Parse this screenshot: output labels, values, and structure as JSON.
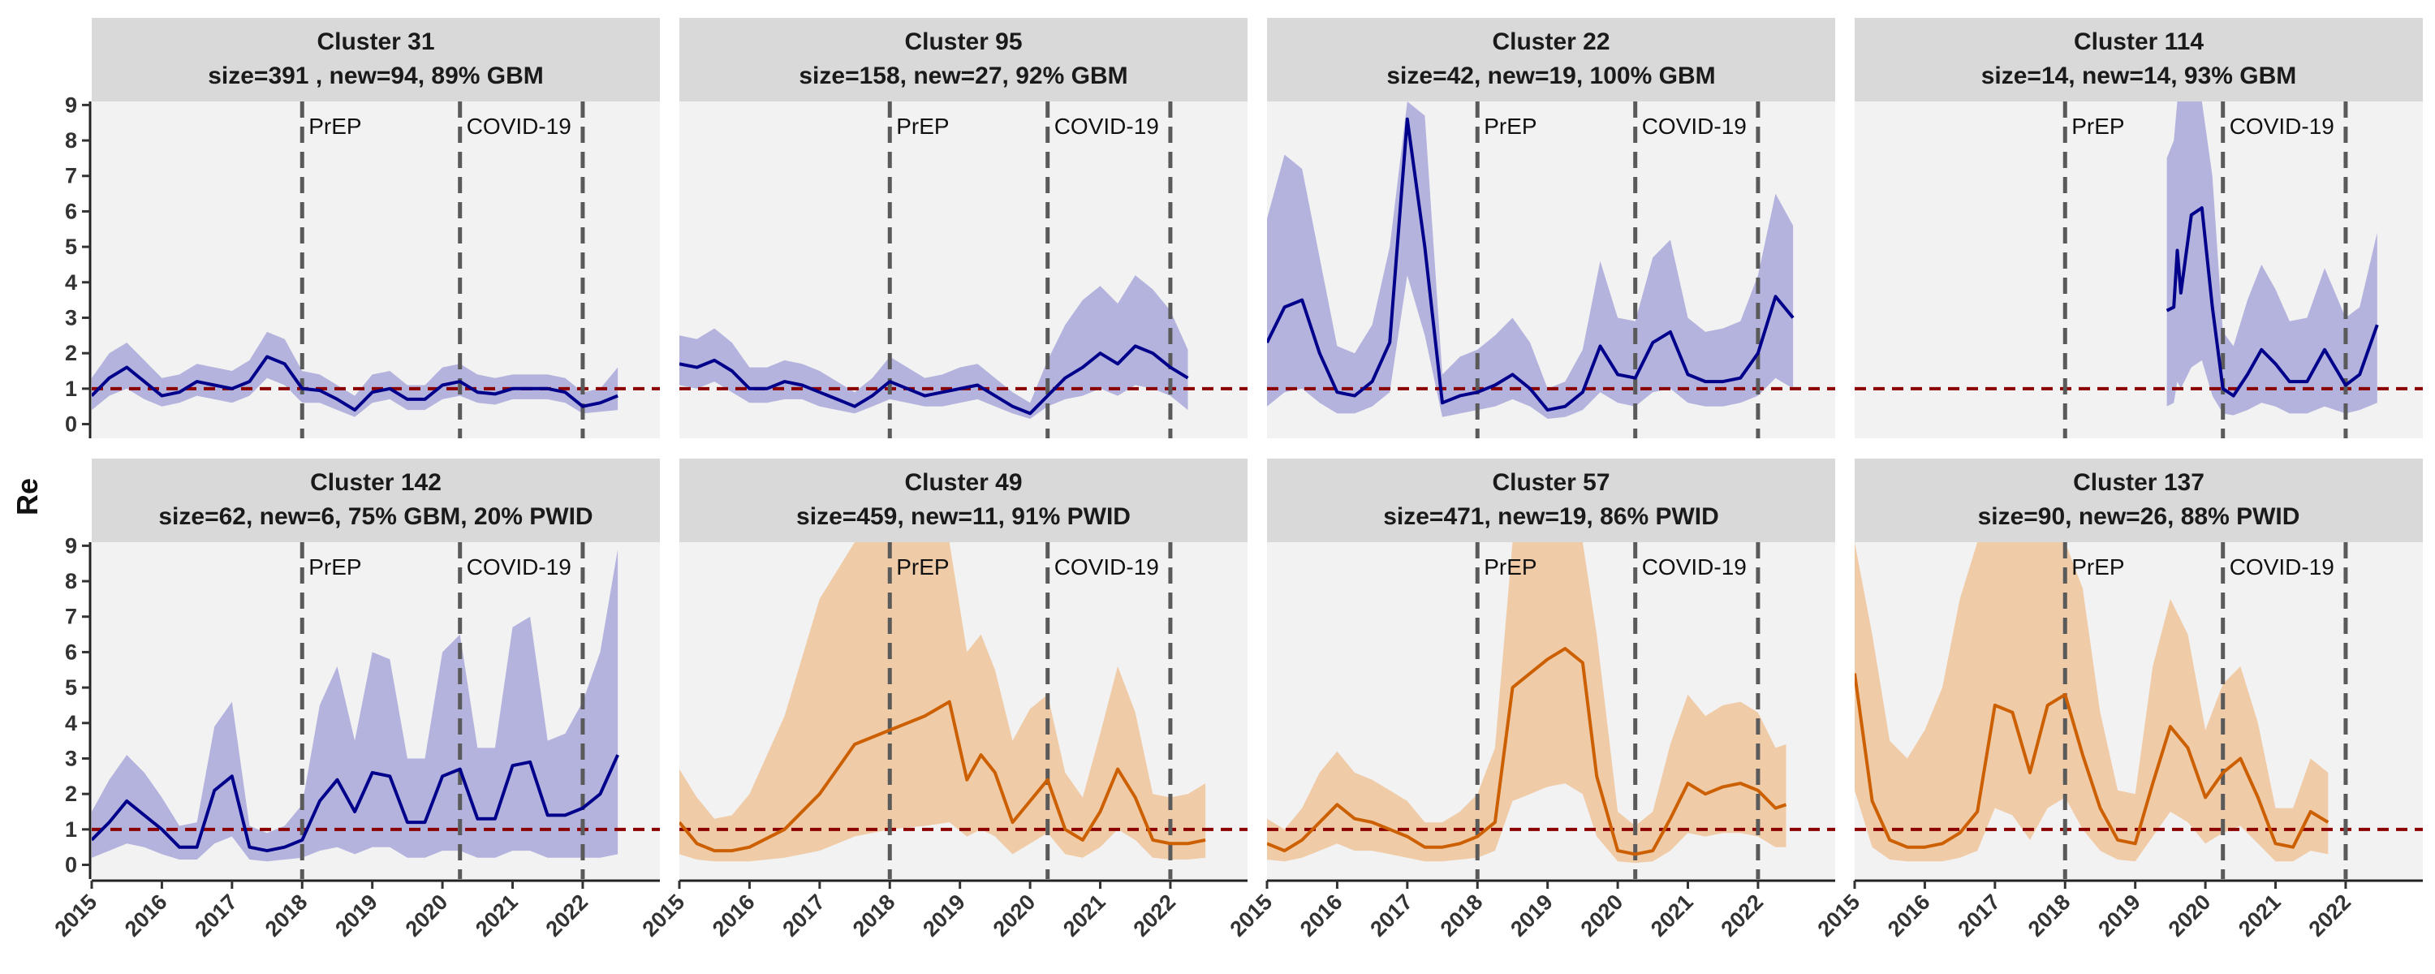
{
  "chart_data": {
    "type": "line",
    "ylabel": "Re",
    "xlabel": "",
    "xlim": [
      2015,
      2023.1
    ],
    "ylim": [
      -0.4,
      9.1
    ],
    "x_ticks": [
      2015,
      2016,
      2017,
      2018,
      2019,
      2020,
      2021,
      2022
    ],
    "y_ticks": [
      0,
      1,
      2,
      3,
      4,
      5,
      6,
      7,
      8,
      9
    ],
    "reference_line": {
      "y": 1,
      "color": "#8b0000",
      "style": "dashed"
    },
    "events": [
      {
        "label": "PrEP",
        "x": 2018.0
      },
      {
        "label": "COVID-19",
        "x": 2020.25
      },
      {
        "label": "",
        "x": 2022.0
      }
    ],
    "grid": false,
    "legend": "none",
    "colors": {
      "GBM": "#00008b",
      "GBM_band": "#b3b3de",
      "PWID": "#cc5f00",
      "PWID_band": "#f0cba7",
      "panel_bg": "#f2f2f2",
      "strip_bg": "#d9d9d9"
    },
    "panels": [
      {
        "title_line1": "Cluster 31",
        "title_line2": "size=391 , new=94, 89% GBM",
        "group": "GBM",
        "x": [
          2015.0,
          2015.25,
          2015.5,
          2015.75,
          2016.0,
          2016.25,
          2016.5,
          2016.75,
          2017.0,
          2017.25,
          2017.5,
          2017.75,
          2018.0,
          2018.25,
          2018.5,
          2018.75,
          2019.0,
          2019.25,
          2019.5,
          2019.75,
          2020.0,
          2020.25,
          2020.5,
          2020.75,
          2021.0,
          2021.25,
          2021.5,
          2021.75,
          2022.0,
          2022.25,
          2022.5
        ],
        "y": [
          0.8,
          1.3,
          1.6,
          1.2,
          0.8,
          0.9,
          1.2,
          1.1,
          1.0,
          1.2,
          1.9,
          1.7,
          1.0,
          0.95,
          0.7,
          0.4,
          0.9,
          1.0,
          0.7,
          0.7,
          1.1,
          1.2,
          0.9,
          0.85,
          1.0,
          1.0,
          1.0,
          0.9,
          0.5,
          0.6,
          0.8
        ],
        "lower": [
          0.4,
          0.8,
          1.0,
          0.7,
          0.5,
          0.6,
          0.8,
          0.7,
          0.6,
          0.8,
          1.3,
          1.1,
          0.6,
          0.6,
          0.4,
          0.2,
          0.6,
          0.7,
          0.4,
          0.4,
          0.7,
          0.8,
          0.6,
          0.55,
          0.7,
          0.7,
          0.7,
          0.6,
          0.3,
          0.35,
          0.4
        ],
        "upper": [
          1.3,
          2.0,
          2.3,
          1.8,
          1.3,
          1.4,
          1.7,
          1.6,
          1.5,
          1.8,
          2.6,
          2.4,
          1.5,
          1.4,
          1.1,
          0.8,
          1.4,
          1.5,
          1.1,
          1.1,
          1.6,
          1.7,
          1.4,
          1.3,
          1.4,
          1.4,
          1.4,
          1.3,
          0.9,
          1.0,
          1.6
        ]
      },
      {
        "title_line1": "Cluster 95",
        "title_line2": "size=158, new=27, 92% GBM",
        "group": "GBM",
        "x": [
          2015.0,
          2015.25,
          2015.5,
          2015.75,
          2016.0,
          2016.25,
          2016.5,
          2016.75,
          2017.0,
          2017.25,
          2017.5,
          2017.75,
          2018.0,
          2018.25,
          2018.5,
          2018.75,
          2019.0,
          2019.25,
          2019.5,
          2019.75,
          2020.0,
          2020.25,
          2020.5,
          2020.75,
          2021.0,
          2021.25,
          2021.5,
          2021.75,
          2022.0,
          2022.25
        ],
        "y": [
          1.7,
          1.6,
          1.8,
          1.5,
          1.0,
          1.0,
          1.2,
          1.1,
          0.9,
          0.7,
          0.5,
          0.8,
          1.2,
          1.0,
          0.8,
          0.9,
          1.0,
          1.1,
          0.8,
          0.5,
          0.3,
          0.8,
          1.3,
          1.6,
          2.0,
          1.7,
          2.2,
          2.0,
          1.6,
          1.3
        ],
        "lower": [
          1.1,
          1.0,
          1.2,
          0.9,
          0.6,
          0.6,
          0.7,
          0.7,
          0.5,
          0.4,
          0.3,
          0.5,
          0.7,
          0.6,
          0.5,
          0.5,
          0.6,
          0.7,
          0.5,
          0.3,
          0.15,
          0.5,
          0.7,
          0.8,
          1.0,
          0.8,
          1.1,
          1.0,
          0.8,
          0.4
        ],
        "upper": [
          2.5,
          2.4,
          2.7,
          2.3,
          1.6,
          1.6,
          1.8,
          1.7,
          1.5,
          1.2,
          0.9,
          1.3,
          1.9,
          1.6,
          1.3,
          1.4,
          1.6,
          1.7,
          1.3,
          0.9,
          0.6,
          1.8,
          2.8,
          3.5,
          3.9,
          3.4,
          4.2,
          3.8,
          3.2,
          2.1
        ]
      },
      {
        "title_line1": "Cluster 22",
        "title_line2": "size=42, new=19, 100% GBM",
        "group": "GBM",
        "x": [
          2015.0,
          2015.25,
          2015.5,
          2015.75,
          2016.0,
          2016.25,
          2016.5,
          2016.75,
          2017.0,
          2017.25,
          2017.5,
          2017.75,
          2018.0,
          2018.25,
          2018.5,
          2018.75,
          2019.0,
          2019.25,
          2019.5,
          2019.75,
          2020.0,
          2020.25,
          2020.5,
          2020.75,
          2021.0,
          2021.25,
          2021.5,
          2021.75,
          2022.0,
          2022.25,
          2022.5
        ],
        "y": [
          2.3,
          3.3,
          3.5,
          2.0,
          0.9,
          0.8,
          1.2,
          2.3,
          8.6,
          5.0,
          0.6,
          0.8,
          0.9,
          1.1,
          1.4,
          1.0,
          0.4,
          0.5,
          0.9,
          2.2,
          1.4,
          1.3,
          2.3,
          2.6,
          1.4,
          1.2,
          1.2,
          1.3,
          2.0,
          3.6,
          3.0
        ],
        "lower": [
          0.5,
          0.9,
          1.0,
          0.6,
          0.3,
          0.3,
          0.5,
          0.9,
          4.2,
          2.5,
          0.2,
          0.3,
          0.4,
          0.5,
          0.7,
          0.5,
          0.15,
          0.2,
          0.4,
          0.9,
          0.6,
          0.5,
          0.9,
          1.0,
          0.6,
          0.5,
          0.5,
          0.6,
          0.8,
          1.3,
          1.0
        ],
        "upper": [
          5.8,
          7.6,
          7.2,
          4.7,
          2.2,
          2.0,
          2.8,
          5.0,
          9.1,
          8.7,
          1.4,
          1.9,
          2.1,
          2.5,
          3.0,
          2.3,
          1.0,
          1.2,
          2.1,
          4.6,
          3.0,
          2.9,
          4.7,
          5.2,
          3.0,
          2.6,
          2.7,
          2.9,
          4.2,
          6.5,
          5.6
        ]
      },
      {
        "title_line1": "Cluster 114",
        "title_line2": "size=14, new=14, 93% GBM",
        "group": "GBM",
        "x": [
          2019.45,
          2019.55,
          2019.6,
          2019.65,
          2019.8,
          2019.95,
          2020.1,
          2020.25,
          2020.4,
          2020.6,
          2020.8,
          2021.0,
          2021.2,
          2021.45,
          2021.7,
          2022.0,
          2022.2,
          2022.45
        ],
        "y": [
          3.2,
          3.3,
          4.9,
          3.7,
          5.9,
          6.1,
          3.3,
          1.0,
          0.8,
          1.4,
          2.1,
          1.7,
          1.2,
          1.2,
          2.1,
          1.1,
          1.4,
          2.8
        ],
        "lower": [
          0.5,
          0.6,
          1.2,
          1.0,
          1.6,
          1.8,
          0.8,
          0.3,
          0.25,
          0.4,
          0.6,
          0.5,
          0.3,
          0.3,
          0.5,
          0.3,
          0.4,
          0.6
        ],
        "upper": [
          7.5,
          8.0,
          9.1,
          9.1,
          9.1,
          9.1,
          7.0,
          2.6,
          2.2,
          3.5,
          4.5,
          3.8,
          2.9,
          3.0,
          4.4,
          3.0,
          3.3,
          5.4
        ]
      },
      {
        "title_line1": "Cluster 142",
        "title_line2": "size=62, new=6, 75% GBM, 20% PWID",
        "group": "GBM",
        "x": [
          2015.0,
          2015.25,
          2015.5,
          2015.75,
          2016.0,
          2016.25,
          2016.5,
          2016.75,
          2017.0,
          2017.25,
          2017.5,
          2017.75,
          2018.0,
          2018.25,
          2018.5,
          2018.75,
          2019.0,
          2019.25,
          2019.5,
          2019.75,
          2020.0,
          2020.25,
          2020.5,
          2020.75,
          2021.0,
          2021.25,
          2021.5,
          2021.75,
          2022.0,
          2022.25,
          2022.5
        ],
        "y": [
          0.7,
          1.2,
          1.8,
          1.4,
          1.0,
          0.5,
          0.5,
          2.1,
          2.5,
          0.5,
          0.4,
          0.5,
          0.7,
          1.8,
          2.4,
          1.5,
          2.6,
          2.5,
          1.2,
          1.2,
          2.5,
          2.7,
          1.3,
          1.3,
          2.8,
          2.9,
          1.4,
          1.4,
          1.6,
          2.0,
          3.1
        ],
        "lower": [
          0.2,
          0.4,
          0.6,
          0.5,
          0.3,
          0.15,
          0.15,
          0.6,
          0.8,
          0.15,
          0.1,
          0.15,
          0.2,
          0.4,
          0.5,
          0.3,
          0.5,
          0.5,
          0.2,
          0.2,
          0.4,
          0.4,
          0.2,
          0.2,
          0.4,
          0.4,
          0.2,
          0.2,
          0.2,
          0.2,
          0.3
        ],
        "upper": [
          1.5,
          2.4,
          3.1,
          2.6,
          1.9,
          1.1,
          1.2,
          3.9,
          4.6,
          1.1,
          0.9,
          1.1,
          1.7,
          4.5,
          5.6,
          3.5,
          6.0,
          5.8,
          3.0,
          3.0,
          6.0,
          6.5,
          3.3,
          3.3,
          6.7,
          7.0,
          3.5,
          3.7,
          4.6,
          6.0,
          8.9
        ]
      },
      {
        "title_line1": "Cluster 49",
        "title_line2": "size=459, new=11, 91% PWID",
        "group": "PWID",
        "x": [
          2015.0,
          2015.25,
          2015.5,
          2015.75,
          2016.0,
          2016.5,
          2017.0,
          2017.5,
          2018.0,
          2018.5,
          2018.85,
          2019.1,
          2019.3,
          2019.5,
          2019.75,
          2020.0,
          2020.25,
          2020.5,
          2020.75,
          2021.0,
          2021.25,
          2021.5,
          2021.75,
          2022.0,
          2022.25,
          2022.5
        ],
        "y": [
          1.2,
          0.6,
          0.4,
          0.4,
          0.5,
          1.0,
          2.0,
          3.4,
          3.8,
          4.2,
          4.6,
          2.4,
          3.1,
          2.6,
          1.2,
          1.8,
          2.4,
          1.0,
          0.7,
          1.5,
          2.7,
          1.9,
          0.7,
          0.6,
          0.6,
          0.7
        ],
        "lower": [
          0.3,
          0.15,
          0.1,
          0.1,
          0.1,
          0.2,
          0.4,
          0.8,
          1.0,
          1.1,
          1.2,
          0.8,
          1.0,
          0.8,
          0.3,
          0.6,
          0.9,
          0.3,
          0.2,
          0.5,
          1.0,
          0.7,
          0.2,
          0.15,
          0.15,
          0.2
        ],
        "upper": [
          2.7,
          1.9,
          1.3,
          1.4,
          2.0,
          4.2,
          7.5,
          9.1,
          9.1,
          9.1,
          9.1,
          6.0,
          6.5,
          5.5,
          3.5,
          4.4,
          4.8,
          2.6,
          1.9,
          3.7,
          5.6,
          4.3,
          2.0,
          1.9,
          2.0,
          2.3
        ]
      },
      {
        "title_line1": "Cluster 57",
        "title_line2": "size=471, new=19, 86% PWID",
        "group": "PWID",
        "x": [
          2015.0,
          2015.25,
          2015.5,
          2015.75,
          2016.0,
          2016.25,
          2016.5,
          2016.75,
          2017.0,
          2017.25,
          2017.5,
          2017.75,
          2018.0,
          2018.25,
          2018.5,
          2018.75,
          2019.0,
          2019.25,
          2019.5,
          2019.7,
          2020.0,
          2020.25,
          2020.5,
          2020.75,
          2021.0,
          2021.25,
          2021.5,
          2021.75,
          2022.0,
          2022.25,
          2022.4
        ],
        "y": [
          0.6,
          0.4,
          0.7,
          1.2,
          1.7,
          1.3,
          1.2,
          1.0,
          0.8,
          0.5,
          0.5,
          0.6,
          0.8,
          1.2,
          5.0,
          5.4,
          5.8,
          6.1,
          5.7,
          2.5,
          0.4,
          0.3,
          0.4,
          1.3,
          2.3,
          2.0,
          2.2,
          2.3,
          2.1,
          1.6,
          1.7
        ],
        "lower": [
          0.15,
          0.1,
          0.2,
          0.4,
          0.6,
          0.4,
          0.4,
          0.3,
          0.2,
          0.1,
          0.1,
          0.15,
          0.2,
          0.4,
          1.8,
          2.0,
          2.2,
          2.3,
          2.0,
          0.8,
          0.1,
          0.05,
          0.1,
          0.4,
          0.9,
          0.8,
          0.9,
          0.9,
          0.8,
          0.5,
          0.5
        ],
        "upper": [
          1.3,
          1.0,
          1.6,
          2.6,
          3.2,
          2.6,
          2.4,
          2.1,
          1.8,
          1.2,
          1.2,
          1.5,
          2.0,
          3.3,
          9.1,
          9.1,
          9.1,
          9.1,
          9.1,
          6.5,
          1.5,
          1.1,
          1.5,
          3.4,
          4.8,
          4.2,
          4.5,
          4.6,
          4.3,
          3.3,
          3.4
        ]
      },
      {
        "title_line1": "Cluster 137",
        "title_line2": "size=90, new=26, 88% PWID",
        "group": "PWID",
        "x": [
          2015.0,
          2015.25,
          2015.5,
          2015.75,
          2016.0,
          2016.25,
          2016.5,
          2016.75,
          2017.0,
          2017.25,
          2017.5,
          2017.75,
          2018.0,
          2018.25,
          2018.5,
          2018.75,
          2019.0,
          2019.25,
          2019.5,
          2019.75,
          2020.0,
          2020.25,
          2020.5,
          2020.75,
          2021.0,
          2021.25,
          2021.5,
          2021.75
        ],
        "y": [
          5.4,
          1.8,
          0.7,
          0.5,
          0.5,
          0.6,
          0.9,
          1.5,
          4.5,
          4.3,
          2.6,
          4.5,
          4.8,
          3.1,
          1.6,
          0.7,
          0.6,
          2.3,
          3.9,
          3.3,
          1.9,
          2.6,
          3.0,
          1.9,
          0.6,
          0.5,
          1.5,
          1.2
        ],
        "lower": [
          2.1,
          0.5,
          0.15,
          0.1,
          0.1,
          0.1,
          0.2,
          0.4,
          1.6,
          1.4,
          0.7,
          1.6,
          1.9,
          1.0,
          0.4,
          0.15,
          0.1,
          0.8,
          1.5,
          1.2,
          0.6,
          0.9,
          1.1,
          0.6,
          0.1,
          0.1,
          0.4,
          0.3
        ],
        "upper": [
          9.1,
          6.5,
          3.5,
          3.0,
          3.8,
          5.0,
          7.5,
          9.1,
          9.1,
          9.1,
          9.1,
          9.1,
          9.1,
          7.8,
          4.3,
          2.1,
          2.0,
          5.6,
          7.5,
          6.5,
          3.8,
          5.1,
          5.6,
          4.0,
          1.6,
          1.6,
          3.0,
          2.6
        ]
      }
    ]
  }
}
